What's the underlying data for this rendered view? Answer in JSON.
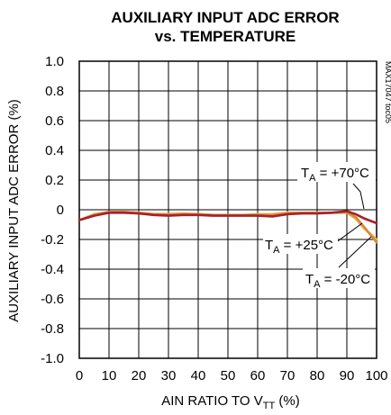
{
  "chart_data": {
    "type": "line",
    "title_line1": "AUXILIARY INPUT ADC ERROR",
    "title_line2": "vs. TEMPERATURE",
    "xlabel_main": "AIN RATIO TO V",
    "xlabel_sub": "TT",
    "xlabel_unit": " (%)",
    "ylabel": "AUXILIARY INPUT ADC ERROR (%)",
    "code_label": "MAX17047 toc05",
    "xlim": [
      0,
      100
    ],
    "ylim": [
      -1.0,
      1.0
    ],
    "grid": true,
    "x_ticks": [
      0,
      10,
      20,
      30,
      40,
      50,
      60,
      70,
      80,
      90,
      100
    ],
    "x_tick_labels": [
      "0",
      "10",
      "20",
      "30",
      "40",
      "50",
      "60",
      "70",
      "80",
      "90",
      "100"
    ],
    "y_ticks": [
      1.0,
      0.8,
      0.6,
      0.4,
      0.2,
      0,
      -0.2,
      -0.4,
      -0.6,
      -0.8,
      -1.0
    ],
    "y_tick_labels": [
      "1.0",
      "0.8",
      "0.6",
      "0.4",
      "0.2",
      "0",
      "-0.2",
      "-0.4",
      "-0.6",
      "-0.8",
      "-1.0"
    ],
    "x": [
      0,
      5,
      10,
      15,
      20,
      25,
      30,
      35,
      40,
      45,
      50,
      55,
      60,
      65,
      70,
      75,
      80,
      85,
      90,
      93,
      96,
      100
    ],
    "series": [
      {
        "name": "+25°C",
        "color": "#e8b040",
        "values": [
          -0.07,
          -0.03,
          -0.015,
          -0.015,
          -0.02,
          -0.03,
          -0.03,
          -0.025,
          -0.03,
          -0.035,
          -0.035,
          -0.035,
          -0.03,
          -0.03,
          -0.02,
          -0.02,
          -0.02,
          -0.02,
          -0.02,
          -0.06,
          -0.13,
          -0.2
        ]
      },
      {
        "name": "-20°C",
        "color": "#d88a3a",
        "values": [
          -0.07,
          -0.035,
          -0.015,
          -0.015,
          -0.02,
          -0.03,
          -0.03,
          -0.03,
          -0.03,
          -0.035,
          -0.035,
          -0.035,
          -0.035,
          -0.035,
          -0.025,
          -0.02,
          -0.02,
          -0.02,
          -0.015,
          -0.05,
          -0.12,
          -0.22
        ]
      },
      {
        "name": "+70°C",
        "color": "#a8202a",
        "values": [
          -0.07,
          -0.04,
          -0.02,
          -0.02,
          -0.025,
          -0.035,
          -0.04,
          -0.035,
          -0.035,
          -0.04,
          -0.04,
          -0.04,
          -0.04,
          -0.045,
          -0.03,
          -0.025,
          -0.025,
          -0.02,
          -0.01,
          -0.03,
          -0.06,
          -0.09
        ]
      }
    ],
    "annotations": [
      {
        "prefix": "T",
        "sub": "A",
        "text": " = +70°C"
      },
      {
        "prefix": "T",
        "sub": "A",
        "text": " = +25°C"
      },
      {
        "prefix": "T",
        "sub": "A",
        "text": " = -20°C"
      }
    ]
  }
}
